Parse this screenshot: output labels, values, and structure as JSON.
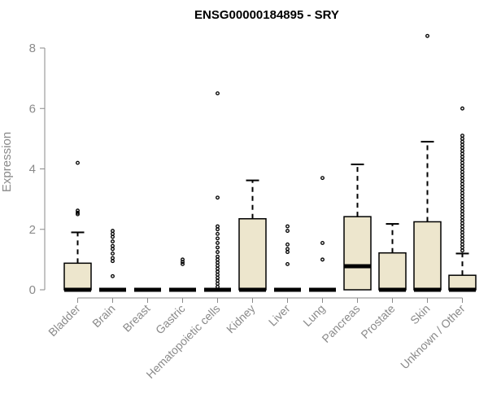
{
  "chart_data": {
    "type": "boxplot",
    "title": "ENSG00000184895 - SRY",
    "xlabel": "",
    "ylabel": "Expression",
    "ylim": [
      0,
      8
    ],
    "yticks": [
      0,
      2,
      4,
      6,
      8
    ],
    "colors": {
      "box_fill": "#ede6cd",
      "stroke": "#000000",
      "axis": "#8a8a8a"
    },
    "categories": [
      "Bladder",
      "Brain",
      "Breast",
      "Gastric",
      "Hematopoietic cells",
      "Kidney",
      "Liver",
      "Lung",
      "Pancreas",
      "Prostate",
      "Skin",
      "Unknown / Other"
    ],
    "boxes": [
      {
        "name": "Bladder",
        "q1": 0,
        "median": 0,
        "q3": 0.88,
        "whisker_high": 1.9,
        "outliers": [
          4.2,
          2.62,
          2.55,
          2.5
        ]
      },
      {
        "name": "Brain",
        "q1": 0,
        "median": 0,
        "q3": 0,
        "whisker_high": 0,
        "outliers": [
          1.95,
          1.85,
          1.75,
          1.6,
          1.45,
          1.35,
          1.2,
          1.05,
          0.95,
          0.45
        ]
      },
      {
        "name": "Breast",
        "q1": 0,
        "median": 0,
        "q3": 0,
        "whisker_high": 0,
        "outliers": []
      },
      {
        "name": "Gastric",
        "q1": 0,
        "median": 0,
        "q3": 0,
        "whisker_high": 0,
        "outliers": [
          1.0,
          0.92,
          0.85
        ]
      },
      {
        "name": "Hematopoietic cells",
        "q1": 0,
        "median": 0,
        "q3": 0,
        "whisker_high": 0,
        "outliers": [
          6.5,
          3.05,
          2.1,
          2.0,
          1.85,
          1.7,
          1.55,
          1.4,
          1.25,
          1.1,
          1.0,
          0.9,
          0.8,
          0.7,
          0.6,
          0.5,
          0.4,
          0.3,
          0.2,
          0.1
        ]
      },
      {
        "name": "Kidney",
        "q1": 0,
        "median": 0,
        "q3": 2.35,
        "whisker_high": 3.62,
        "outliers": []
      },
      {
        "name": "Liver",
        "q1": 0,
        "median": 0,
        "q3": 0,
        "whisker_high": 0,
        "outliers": [
          2.1,
          1.95,
          1.5,
          1.35,
          1.25,
          0.85
        ]
      },
      {
        "name": "Lung",
        "q1": 0,
        "median": 0,
        "q3": 0,
        "whisker_high": 0,
        "outliers": [
          3.7,
          1.55,
          1.0
        ]
      },
      {
        "name": "Pancreas",
        "q1": 0,
        "median": 0.78,
        "q3": 2.42,
        "whisker_high": 4.15,
        "outliers": []
      },
      {
        "name": "Prostate",
        "q1": 0,
        "median": 0,
        "q3": 1.22,
        "whisker_high": 2.18,
        "outliers": []
      },
      {
        "name": "Skin",
        "q1": 0,
        "median": 0,
        "q3": 2.25,
        "whisker_high": 4.9,
        "outliers": [
          8.4
        ]
      },
      {
        "name": "Unknown / Other",
        "q1": 0,
        "median": 0,
        "q3": 0.48,
        "whisker_high": 1.2,
        "outliers": [
          6.0,
          5.1,
          5.0,
          4.9,
          4.8,
          4.7,
          4.6,
          4.5,
          4.4,
          4.3,
          4.2,
          4.1,
          4.0,
          3.9,
          3.8,
          3.7,
          3.6,
          3.5,
          3.4,
          3.3,
          3.2,
          3.1,
          3.0,
          2.9,
          2.8,
          2.7,
          2.6,
          2.5,
          2.4,
          2.3,
          2.2,
          2.1,
          2.0,
          1.9,
          1.8,
          1.7,
          1.6,
          1.5,
          1.4,
          1.3
        ]
      }
    ]
  }
}
